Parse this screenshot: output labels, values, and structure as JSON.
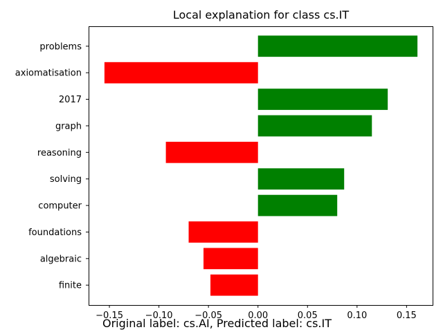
{
  "chart_data": {
    "type": "bar",
    "orientation": "horizontal",
    "title": "Local explanation for class cs.IT",
    "caption": "Original label: cs.AI, Predicted label: cs.IT",
    "categories": [
      "problems",
      "axiomatisation",
      "2017",
      "graph",
      "reasoning",
      "solving",
      "computer",
      "foundations",
      "algebraic",
      "finite"
    ],
    "values": [
      0.161,
      -0.155,
      0.131,
      0.115,
      -0.093,
      0.087,
      0.08,
      -0.07,
      -0.055,
      -0.048
    ],
    "xlim": [
      -0.171,
      0.177
    ],
    "xticks": [
      -0.15,
      -0.1,
      -0.05,
      0.0,
      0.05,
      0.1,
      0.15
    ],
    "xtick_labels": [
      "−0.15",
      "−0.10",
      "−0.05",
      "0.00",
      "0.05",
      "0.10",
      "0.15"
    ],
    "colors": {
      "positive": "#008000",
      "negative": "#ff0000"
    },
    "grid": false,
    "legend": "none"
  }
}
